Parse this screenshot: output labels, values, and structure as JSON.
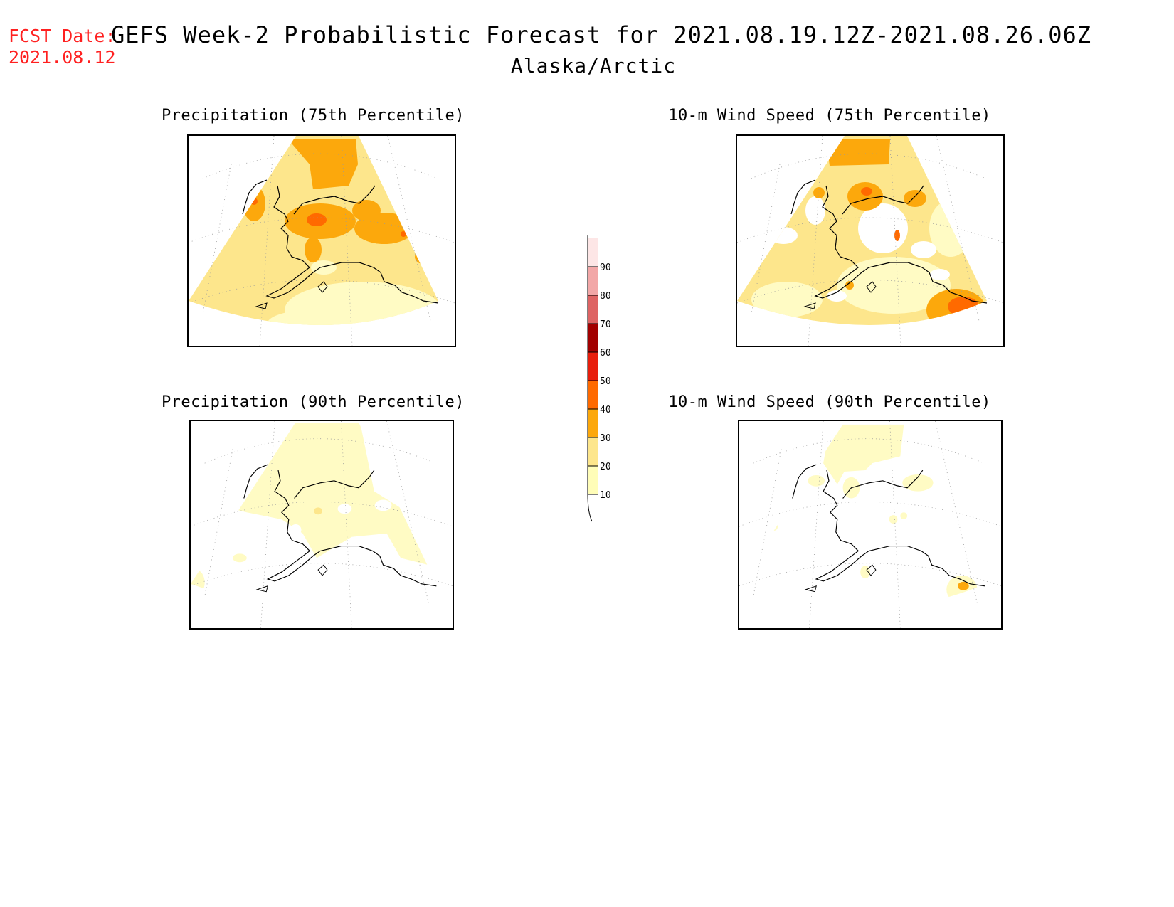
{
  "header": {
    "fcst_label": "FCST Date:",
    "fcst_date": "2021.08.12",
    "title": "GEFS Week-2 Probabilistic Forecast for 2021.08.19.12Z-2021.08.26.06Z",
    "subtitle": "Alaska/Arctic"
  },
  "panels": {
    "precip75": {
      "title": "Precipitation (75th Percentile)"
    },
    "wind75": {
      "title": "10-m Wind Speed (75th Percentile)"
    },
    "precip90": {
      "title": "Precipitation (90th Percentile)"
    },
    "wind90": {
      "title": "10-m Wind Speed (90th Percentile)"
    }
  },
  "colorbar": {
    "levels": [
      10,
      20,
      30,
      40,
      50,
      60,
      70,
      80,
      90
    ],
    "colors": [
      "#fffdb8",
      "#fde68c",
      "#fca80c",
      "#ff6a00",
      "#e81e0c",
      "#a20000",
      "#de6464",
      "#f2a7a7",
      "#fde6e6"
    ]
  },
  "colors": {
    "fcst_red": "#ff2020",
    "very_light": "#fffbc4",
    "light": "#fde68c",
    "orange": "#fca80c",
    "dark_orange": "#ff6a00"
  }
}
